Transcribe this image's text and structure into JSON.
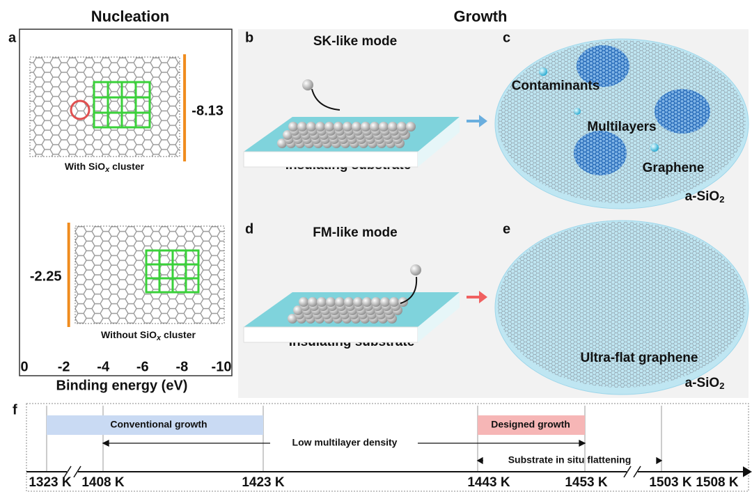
{
  "headers": {
    "left": "Nucleation",
    "right": "Growth"
  },
  "panel_a": {
    "label": "a",
    "top_caption": {
      "before": "With SiO",
      "sub": "x",
      "after": " cluster"
    },
    "bottom_caption": {
      "before": "Without SiO",
      "sub": "x",
      "after": " cluster"
    }
  },
  "chart_data": {
    "type": "bar",
    "xlabel": "Binding energy (eV)",
    "xlim": [
      0,
      -10
    ],
    "xticks": [
      0,
      -2,
      -4,
      -6,
      -8,
      -10
    ],
    "values": [
      -8.13,
      -2.25
    ],
    "color": "#f08c1e"
  },
  "panel_b": {
    "label": "b",
    "title": "SK-like mode",
    "caption": "Insulating substrate"
  },
  "panel_c": {
    "label": "c",
    "contaminants": "Contaminants",
    "multilayers": "Multilayers",
    "graphene": "Graphene",
    "substrate": {
      "before": "a-SiO",
      "sub": "2"
    }
  },
  "panel_d": {
    "label": "d",
    "title": "FM-like mode",
    "caption": "Insulating substrate"
  },
  "panel_e": {
    "label": "e",
    "graphene": "Ultra-flat graphene",
    "substrate": {
      "before": "a-SiO",
      "sub": "2"
    }
  },
  "panel_f": {
    "label": "f",
    "conventional": "Conventional growth",
    "designed": "Designed growth",
    "low_density": "Low multilayer density",
    "flattening": "Substrate in situ flattening",
    "ticks": [
      "1323 K",
      "1408 K",
      "1423 K",
      "1443 K",
      "1453 K",
      "1503 K",
      "1508 K"
    ]
  }
}
